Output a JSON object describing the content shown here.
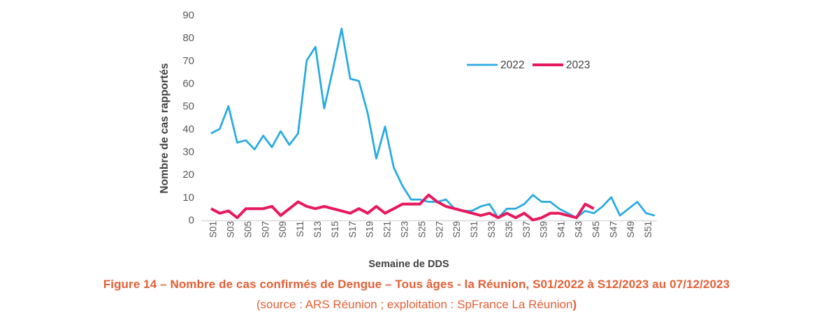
{
  "figure": {
    "caption_line1": "Figure 14 – Nombre de cas confirmés de Dengue – Tous âges - la Réunion, S01/2022 à S12/2023 au 07/12/2023",
    "caption_line2_main": "(source : ARS Réunion ; exploitation : SpFrance La Réunion",
    "caption_line2_bold": ")",
    "caption_color": "#E35F35"
  },
  "chart_data": {
    "type": "line",
    "title": "",
    "xlabel": "Semaine de DDS",
    "ylabel": "Nombre de cas rapportés",
    "ylim": [
      0,
      90
    ],
    "y_ticks": [
      0,
      10,
      20,
      30,
      40,
      50,
      60,
      70,
      80,
      90
    ],
    "x_tick_labels": [
      "S01",
      "S03",
      "S05",
      "S07",
      "S09",
      "S11",
      "S13",
      "S15",
      "S17",
      "S19",
      "S21",
      "S23",
      "S25",
      "S27",
      "S29",
      "S31",
      "S33",
      "S35",
      "S37",
      "S39",
      "S41",
      "S43",
      "S45",
      "S47",
      "S49",
      "S51"
    ],
    "grid": false,
    "legend_position": "top-right-inside",
    "axis_color": "#D9D9D9",
    "tick_text_color": "#595959",
    "axis_title_color": "#404040",
    "categories": [
      "S01",
      "S02",
      "S03",
      "S04",
      "S05",
      "S06",
      "S07",
      "S08",
      "S09",
      "S10",
      "S11",
      "S12",
      "S13",
      "S14",
      "S15",
      "S16",
      "S17",
      "S18",
      "S19",
      "S20",
      "S21",
      "S22",
      "S23",
      "S24",
      "S25",
      "S26",
      "S27",
      "S28",
      "S29",
      "S30",
      "S31",
      "S32",
      "S33",
      "S34",
      "S35",
      "S36",
      "S37",
      "S38",
      "S39",
      "S40",
      "S41",
      "S42",
      "S43",
      "S44",
      "S45",
      "S46",
      "S47",
      "S48",
      "S49",
      "S50",
      "S51",
      "S52"
    ],
    "series": [
      {
        "name": "2022",
        "color": "#27AAE1",
        "stroke_width": 2.75,
        "values": [
          38,
          40,
          50,
          34,
          35,
          31,
          37,
          32,
          39,
          33,
          38,
          70,
          76,
          49,
          66,
          84,
          62,
          61,
          47,
          27,
          41,
          23,
          15,
          9,
          9,
          8,
          8,
          9,
          5,
          4,
          4,
          6,
          7,
          1,
          5,
          5,
          7,
          11,
          8,
          8,
          5,
          3,
          1,
          4,
          3,
          6,
          10,
          2,
          5,
          8,
          3,
          2
        ]
      },
      {
        "name": "2023",
        "color": "#E8185D",
        "stroke_width": 4,
        "values": [
          5,
          3,
          4,
          1,
          5,
          5,
          5,
          6,
          2,
          5,
          8,
          6,
          5,
          6,
          5,
          4,
          3,
          5,
          3,
          6,
          3,
          5,
          7,
          7,
          7,
          11,
          8,
          6,
          5,
          4,
          3,
          2,
          3,
          1,
          3,
          1,
          3,
          0,
          1,
          3,
          3,
          2,
          1,
          7,
          5
        ]
      }
    ]
  }
}
